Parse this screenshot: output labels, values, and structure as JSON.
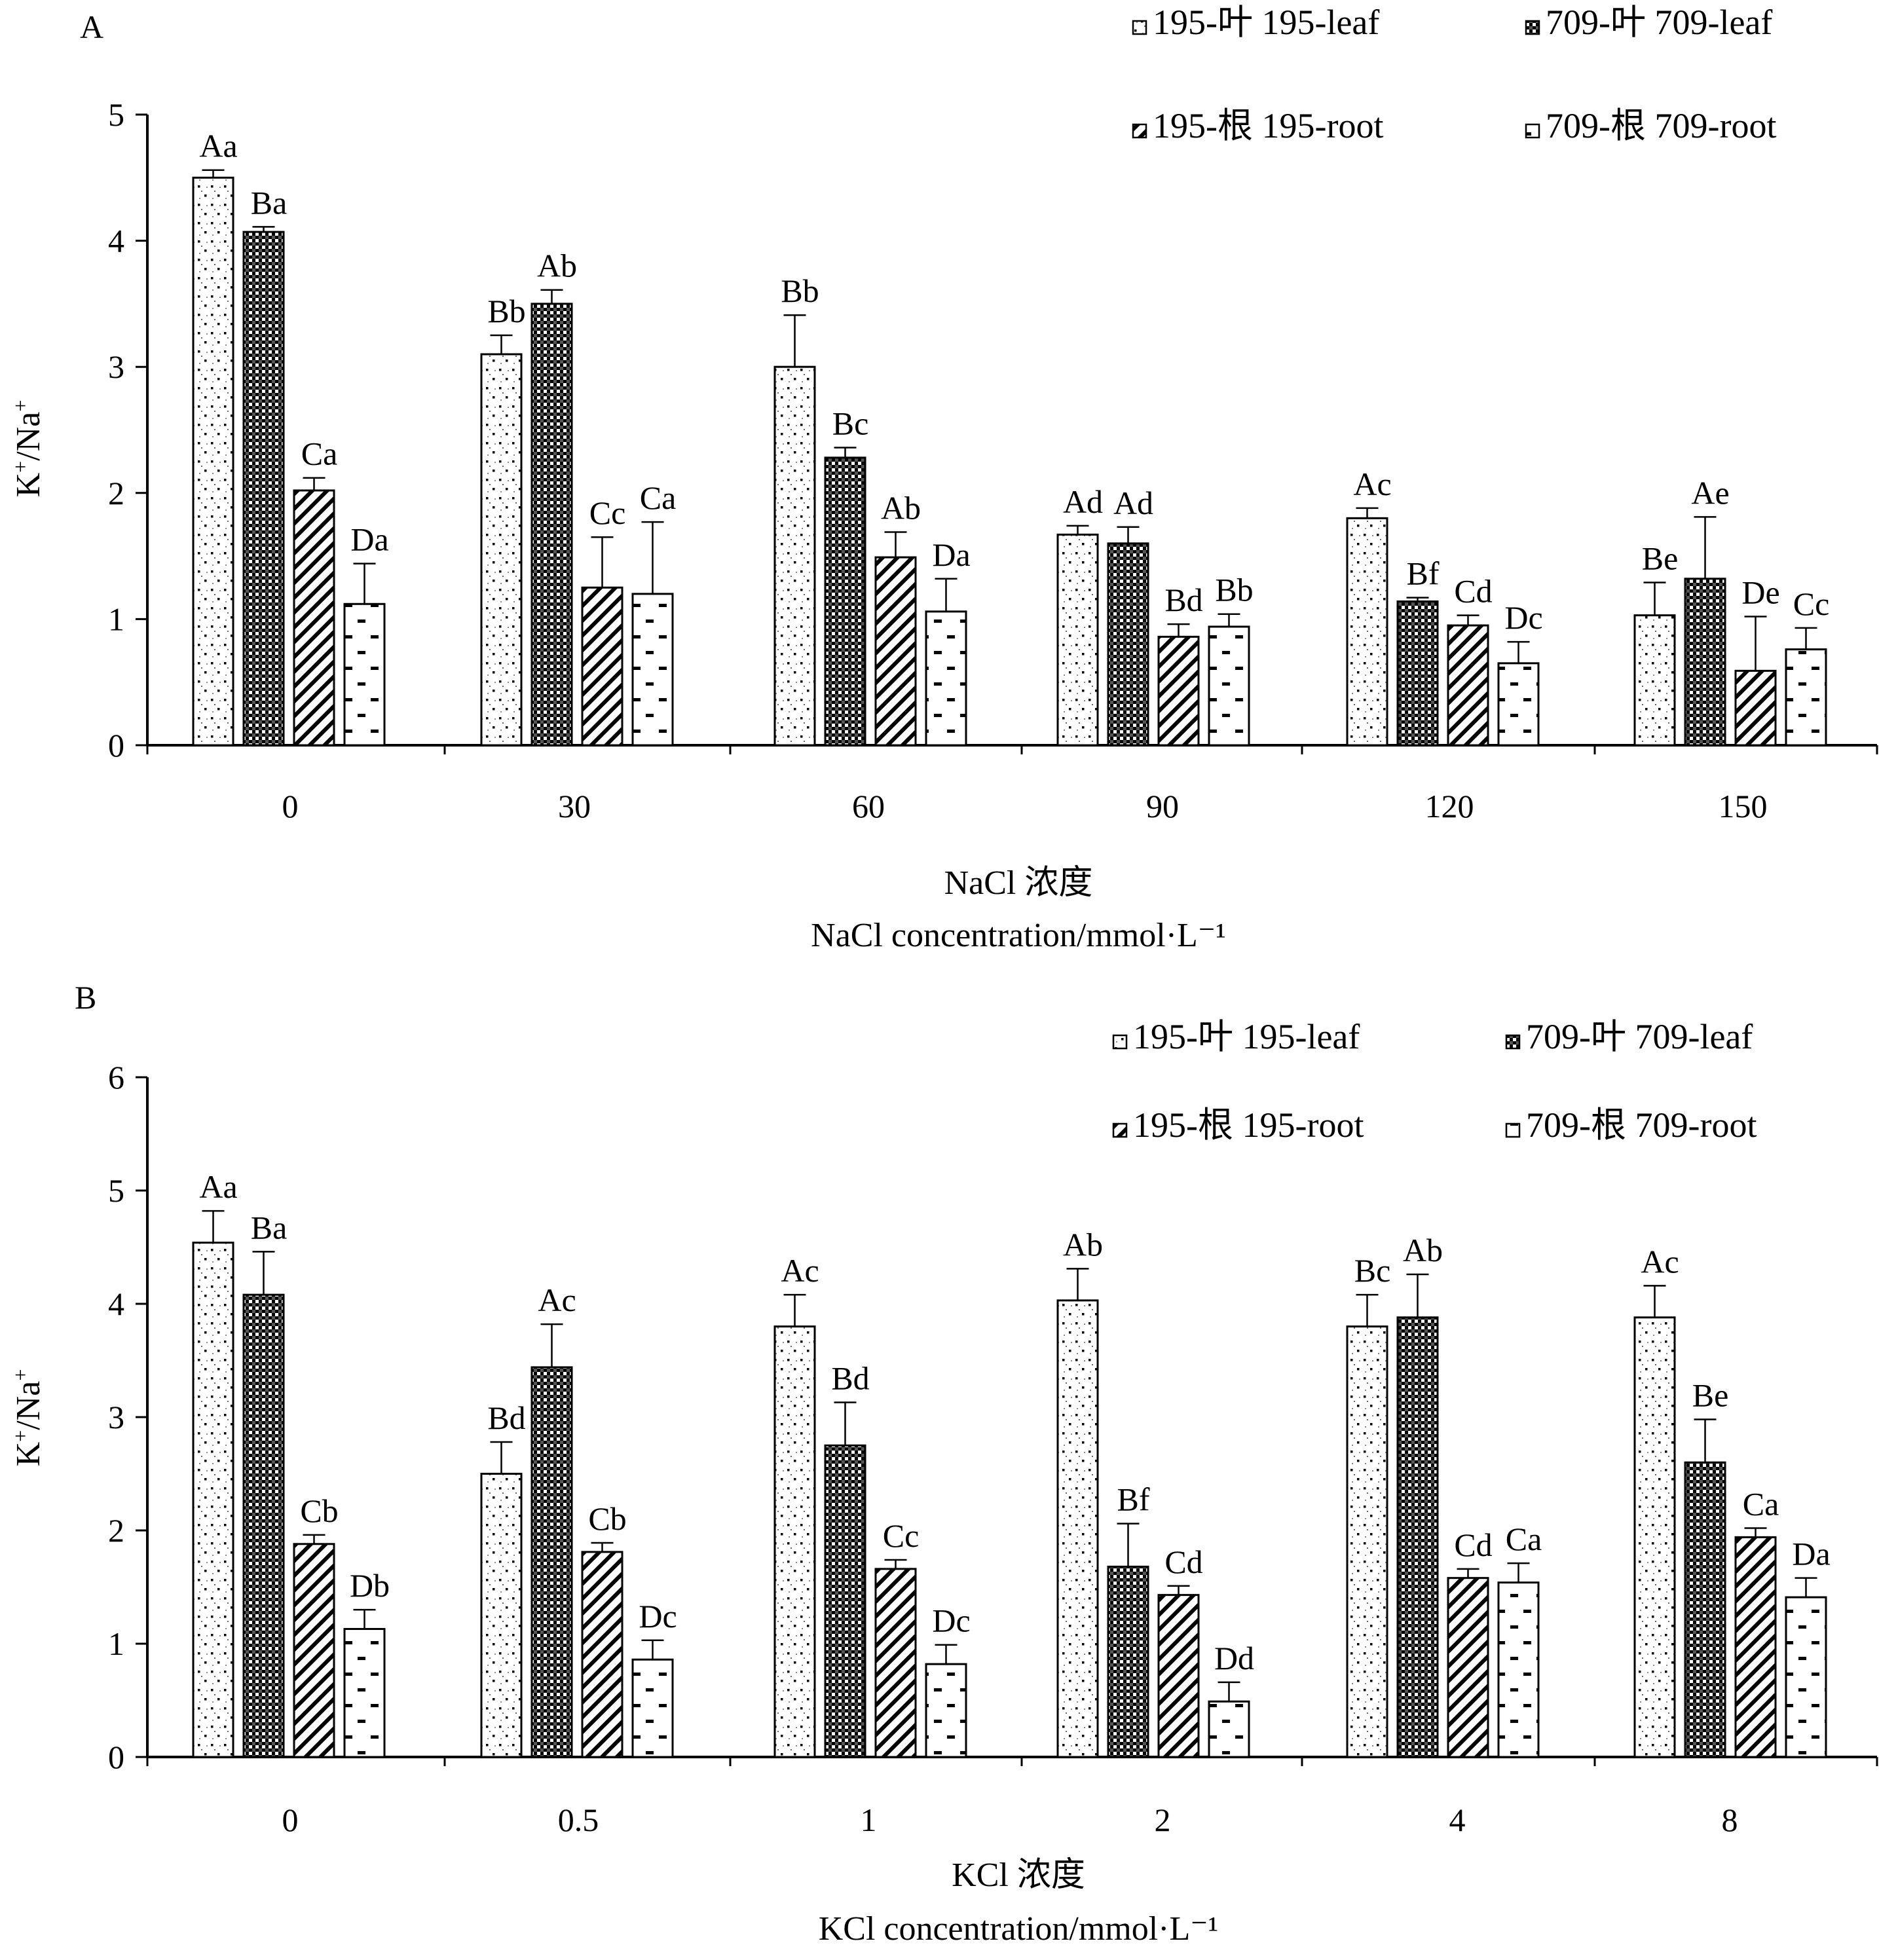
{
  "chart_data": [
    {
      "type": "bar",
      "panel": "A",
      "ylabel_base": "K",
      "ylabel_sup1": "+",
      "ylabel_mid": "/Na",
      "ylabel_sup2": "+",
      "xlabel_cn": "NaCl 浓度",
      "xlabel_en": "NaCl concentration/mmol·L⁻¹",
      "ylim": [
        0,
        5
      ],
      "yticks": [
        "0",
        "1",
        "2",
        "3",
        "4",
        "5"
      ],
      "categories": [
        "0",
        "30",
        "60",
        "90",
        "120",
        "150"
      ],
      "series": [
        {
          "name": "195-叶 195-leaf",
          "values": [
            4.5,
            3.1,
            3.0,
            1.67,
            1.8,
            1.03
          ],
          "errors": [
            0.06,
            0.15,
            0.41,
            0.07,
            0.08,
            0.26
          ],
          "labels": [
            "Aa",
            "Bb",
            "Bb",
            "Ad",
            "Ac",
            "Be"
          ]
        },
        {
          "name": "709-叶 709-leaf",
          "values": [
            4.07,
            3.5,
            2.28,
            1.6,
            1.14,
            1.32
          ],
          "errors": [
            0.04,
            0.11,
            0.08,
            0.13,
            0.03,
            0.49
          ],
          "labels": [
            "Ba",
            "Ab",
            "Bc",
            "Ad",
            "Bf",
            "Ae"
          ]
        },
        {
          "name": "195-根 195-root",
          "values": [
            2.02,
            1.25,
            1.49,
            0.86,
            0.95,
            0.59
          ],
          "errors": [
            0.1,
            0.4,
            0.2,
            0.1,
            0.08,
            0.43
          ],
          "labels": [
            "Ca",
            "Cc",
            "Ab",
            "Bd",
            "Cd",
            "De"
          ]
        },
        {
          "name": "709-根 709-root",
          "values": [
            1.12,
            1.2,
            1.06,
            0.94,
            0.65,
            0.76
          ],
          "errors": [
            0.32,
            0.57,
            0.26,
            0.1,
            0.17,
            0.17
          ],
          "labels": [
            "Da",
            "Ca",
            "Da",
            "Bb",
            "Dc",
            "Cc"
          ]
        }
      ]
    },
    {
      "type": "bar",
      "panel": "B",
      "ylabel_base": "K",
      "ylabel_sup1": "+",
      "ylabel_mid": "/Na",
      "ylabel_sup2": "+",
      "xlabel_cn": "KCl 浓度",
      "xlabel_en": "KCl concentration/mmol·L⁻¹",
      "ylim": [
        0,
        6
      ],
      "yticks": [
        "0",
        "1",
        "2",
        "3",
        "4",
        "5",
        "6"
      ],
      "categories": [
        "0",
        "0.5",
        "1",
        "2",
        "4",
        "8"
      ],
      "series": [
        {
          "name": "195-叶 195-leaf",
          "values": [
            4.54,
            2.5,
            3.8,
            4.03,
            3.8,
            3.88
          ],
          "errors": [
            0.28,
            0.28,
            0.28,
            0.28,
            0.28,
            0.28
          ],
          "labels": [
            "Aa",
            "Bd",
            "Ac",
            "Ab",
            "Bc",
            "Ac"
          ]
        },
        {
          "name": "709-叶 709-leaf",
          "values": [
            4.08,
            3.44,
            2.75,
            1.68,
            3.88,
            2.6
          ],
          "errors": [
            0.38,
            0.38,
            0.38,
            0.38,
            0.38,
            0.38
          ],
          "labels": [
            "Ba",
            "Ac",
            "Bd",
            "Bf",
            "Ab",
            "Be"
          ]
        },
        {
          "name": "195-根 195-root",
          "values": [
            1.88,
            1.81,
            1.66,
            1.43,
            1.58,
            1.94
          ],
          "errors": [
            0.08,
            0.08,
            0.08,
            0.08,
            0.08,
            0.08
          ],
          "labels": [
            "Cb",
            "Cb",
            "Cc",
            "Cd",
            "Cd",
            "Ca"
          ]
        },
        {
          "name": "709-根 709-root",
          "values": [
            1.13,
            0.86,
            0.82,
            0.49,
            1.54,
            1.41
          ],
          "errors": [
            0.17,
            0.17,
            0.17,
            0.17,
            0.17,
            0.17
          ],
          "labels": [
            "Db",
            "Dc",
            "Dc",
            "Dd",
            "Ca",
            "Da"
          ]
        }
      ]
    }
  ]
}
